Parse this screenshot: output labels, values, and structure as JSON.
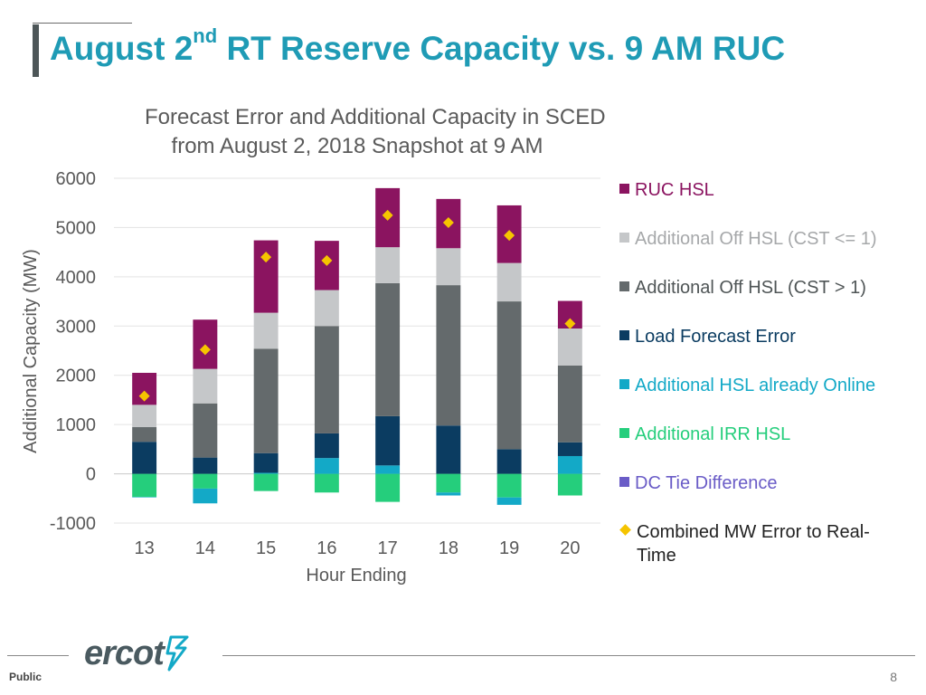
{
  "slide": {
    "title_main": "August 2",
    "title_sup": "nd",
    "title_rest": " RT Reserve Capacity vs. 9 AM RUC",
    "footer_label": "Public",
    "page_number": "8",
    "logo_text": "ercot"
  },
  "colors": {
    "title": "#1f9bb5",
    "ruc_hsl": "#8b1460",
    "off_hsl_le1": "#c5c7c9",
    "off_hsl_gt1": "#646a6c",
    "load_forecast_error": "#0b3c61",
    "hsl_online": "#13a9c7",
    "irr_hsl": "#25ce7c",
    "dc_tie": "#6a5cc7",
    "combined": "#f5c400"
  },
  "chart_data": {
    "type": "bar",
    "stacked": true,
    "title": "Forecast Error and Additional Capacity in SCED",
    "subtitle": "from August 2, 2018 Snapshot at 9 AM",
    "xlabel": "Hour Ending",
    "ylabel": "Additional Capacity (MW)",
    "ylim": [
      -1000,
      6000
    ],
    "yticks": [
      "6000",
      "5000",
      "4000",
      "3000",
      "2000",
      "1000",
      "0",
      "-1000"
    ],
    "categories": [
      "13",
      "14",
      "15",
      "16",
      "17",
      "18",
      "19",
      "20"
    ],
    "series": [
      {
        "name": "RUC HSL",
        "key": "ruc_hsl",
        "values": [
          650,
          1000,
          1470,
          1000,
          1200,
          1000,
          1170,
          560
        ]
      },
      {
        "name": "Additional Off HSL (CST <= 1)",
        "key": "off_hsl_le1",
        "values": [
          450,
          700,
          730,
          730,
          730,
          750,
          780,
          750
        ]
      },
      {
        "name": "Additional Off HSL (CST > 1)",
        "key": "off_hsl_gt1",
        "values": [
          300,
          1100,
          2120,
          2180,
          2700,
          2850,
          3000,
          1560
        ]
      },
      {
        "name": "Load Forecast Error",
        "key": "load_forecast_error",
        "values": [
          650,
          330,
          400,
          500,
          1000,
          980,
          500,
          280
        ]
      },
      {
        "name": "Additional HSL already Online",
        "key": "hsl_online",
        "values": [
          -10,
          -300,
          20,
          320,
          170,
          -60,
          -150,
          360
        ]
      },
      {
        "name": "Additional IRR HSL",
        "key": "irr_hsl",
        "values": [
          -470,
          -300,
          -350,
          -380,
          -570,
          -380,
          -480,
          -440
        ]
      },
      {
        "name": "DC Tie Difference",
        "key": "dc_tie",
        "values": [
          0,
          0,
          0,
          0,
          0,
          0,
          0,
          0
        ]
      }
    ],
    "markers": {
      "name": "Combined MW Error to Real-Time",
      "key": "combined",
      "values": [
        1580,
        2520,
        4400,
        4330,
        5250,
        5100,
        4840,
        3050
      ]
    },
    "legend": [
      {
        "label": "RUC HSL",
        "key": "ruc_hsl",
        "shape": "square",
        "text_color": "#8b1460"
      },
      {
        "label": "Additional Off HSL (CST <= 1)",
        "key": "off_hsl_le1",
        "shape": "square",
        "text_color": "#a6a8aa"
      },
      {
        "label": "Additional Off HSL (CST > 1)",
        "key": "off_hsl_gt1",
        "shape": "square",
        "text_color": "#4f5556"
      },
      {
        "label": "Load Forecast Error",
        "key": "load_forecast_error",
        "shape": "square",
        "text_color": "#0b3c61"
      },
      {
        "label": "Additional HSL already Online",
        "key": "hsl_online",
        "shape": "square",
        "text_color": "#13a9c7"
      },
      {
        "label": "Additional IRR HSL",
        "key": "irr_hsl",
        "shape": "square",
        "text_color": "#25ce7c"
      },
      {
        "label": "DC Tie Difference",
        "key": "dc_tie",
        "shape": "square",
        "text_color": "#6a5cc7"
      },
      {
        "label": "Combined MW Error to Real-",
        "label_line2": "Time",
        "key": "combined",
        "shape": "diamond",
        "text_color": "#222222"
      }
    ],
    "legend_position": "right",
    "grid": true
  }
}
